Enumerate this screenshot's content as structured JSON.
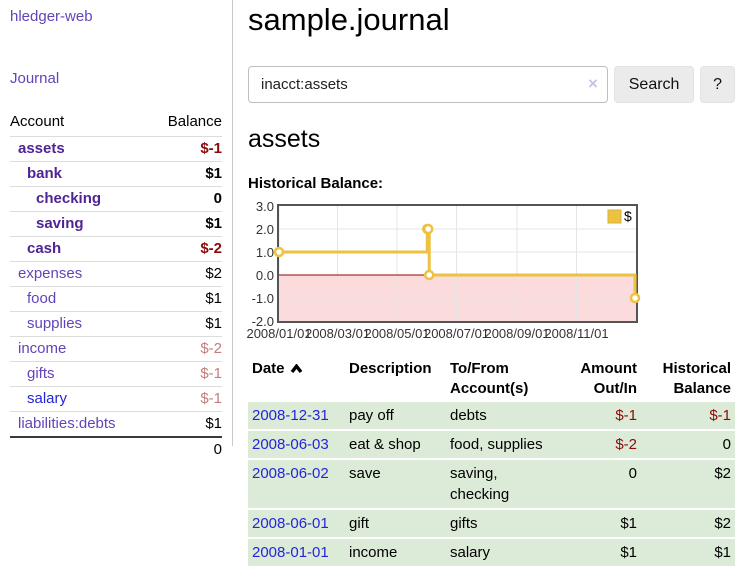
{
  "app": {
    "title": "hledger-web",
    "nav_journal": "Journal"
  },
  "sidebar": {
    "header": {
      "account": "Account",
      "balance": "Balance"
    },
    "accounts": [
      {
        "name": "assets",
        "level": 0,
        "bold": true,
        "balance": "$-1",
        "balance_style": "neg-strong",
        "link": "purple"
      },
      {
        "name": "bank",
        "level": 1,
        "bold": true,
        "balance": "$1",
        "balance_style": "pos",
        "link": "purple"
      },
      {
        "name": "checking",
        "level": 2,
        "bold": true,
        "balance": "0",
        "balance_style": "pos",
        "link": "purple"
      },
      {
        "name": "saving",
        "level": 2,
        "bold": true,
        "balance": "$1",
        "balance_style": "pos",
        "link": "purple"
      },
      {
        "name": "cash",
        "level": 1,
        "bold": true,
        "balance": "$-2",
        "balance_style": "neg-strong",
        "link": "purple"
      },
      {
        "name": "expenses",
        "level": 0,
        "bold": false,
        "balance": "$2",
        "balance_style": "pos",
        "link": "purple"
      },
      {
        "name": "food",
        "level": 1,
        "bold": false,
        "balance": "$1",
        "balance_style": "pos",
        "link": "purple"
      },
      {
        "name": "supplies",
        "level": 1,
        "bold": false,
        "balance": "$1",
        "balance_style": "pos",
        "link": "purple"
      },
      {
        "name": "income",
        "level": 0,
        "bold": false,
        "balance": "$-2",
        "balance_style": "neg-soft",
        "link": "purple"
      },
      {
        "name": "gifts",
        "level": 1,
        "bold": false,
        "balance": "$-1",
        "balance_style": "neg-soft",
        "link": "purple"
      },
      {
        "name": "salary",
        "level": 1,
        "bold": false,
        "balance": "$-1",
        "balance_style": "neg-soft",
        "link": "blue"
      },
      {
        "name": "liabilities:debts",
        "level": 0,
        "bold": false,
        "balance": "$1",
        "balance_style": "pos",
        "link": "purple"
      }
    ],
    "total": "0"
  },
  "header": {
    "title": "sample.journal"
  },
  "search": {
    "value": "inacct:assets",
    "clear_icon": "×",
    "button": "Search",
    "help_button": "?"
  },
  "account_page": {
    "title": "assets"
  },
  "chart_data": {
    "type": "line",
    "step": true,
    "title": "Historical Balance:",
    "series": [
      {
        "name": "$",
        "points": [
          [
            "2008-01-01",
            1
          ],
          [
            "2008-06-01",
            2
          ],
          [
            "2008-06-02",
            2
          ],
          [
            "2008-06-03",
            0
          ],
          [
            "2008-12-31",
            -1
          ]
        ]
      }
    ],
    "x_range": [
      "2008-01-01",
      "2009-01-01"
    ],
    "ylim": [
      -2,
      3
    ],
    "y_ticks": [
      "3.0",
      "2.0",
      "1.0",
      "0.0",
      "-1.0",
      "-2.0"
    ],
    "x_ticks": [
      "2008/01/01",
      "2008/03/01",
      "2008/05/01",
      "2008/07/01",
      "2008/09/01",
      "2008/11/01"
    ],
    "legend": {
      "label": "$",
      "position": "top-right"
    },
    "colors": {
      "line": "#edc240",
      "marker_fill": "#ffffff",
      "negative_fill": "#fbdbdb",
      "zero_line": "#9a0000",
      "grid": "#e6e6e6",
      "border": "#545454"
    }
  },
  "register": {
    "columns": {
      "date": "Date",
      "description": "Description",
      "account": "To/From Account(s)",
      "amount": "Amount Out/In",
      "balance": "Historical Balance"
    },
    "rows": [
      {
        "date": "2008-12-31",
        "description": "pay off",
        "accounts": "debts",
        "amount": "$-1",
        "balance": "$-1"
      },
      {
        "date": "2008-06-03",
        "description": "eat & shop",
        "accounts": "food, supplies",
        "amount": "$-2",
        "balance": "0"
      },
      {
        "date": "2008-06-02",
        "description": "save",
        "accounts": "saving,\nchecking",
        "amount": "0",
        "balance": "$2"
      },
      {
        "date": "2008-06-01",
        "description": "gift",
        "accounts": "gifts",
        "amount": "$1",
        "balance": "$2"
      },
      {
        "date": "2008-01-01",
        "description": "income",
        "accounts": "salary",
        "amount": "$1",
        "balance": "$1"
      }
    ]
  }
}
